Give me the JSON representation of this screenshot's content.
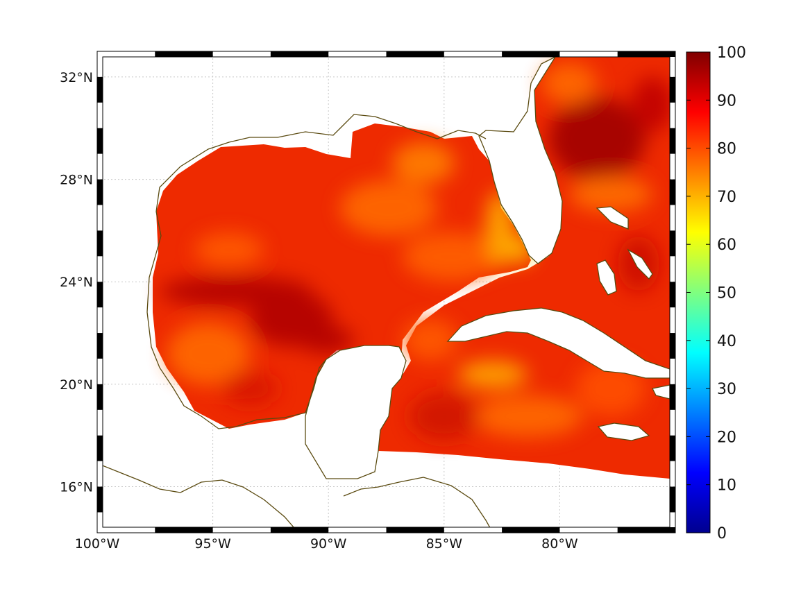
{
  "map": {
    "lon_range": [
      -100,
      -75
    ],
    "lat_range": [
      14.2,
      33
    ],
    "x_ticks": [
      {
        "lon": -100,
        "label": "100°W"
      },
      {
        "lon": -95,
        "label": "95°W"
      },
      {
        "lon": -90,
        "label": "90°W"
      },
      {
        "lon": -85,
        "label": "85°W"
      },
      {
        "lon": -80,
        "label": "80°W"
      }
    ],
    "y_ticks": [
      {
        "lat": 16,
        "label": "16°N"
      },
      {
        "lat": 20,
        "label": "20°N"
      },
      {
        "lat": 24,
        "label": "24°N"
      },
      {
        "lat": 28,
        "label": "28°N"
      },
      {
        "lat": 32,
        "label": "32°N"
      }
    ],
    "grid": true,
    "coastline_color": "#5a4a10",
    "frame_style": "alternating black-white border"
  },
  "colorbar": {
    "min": 0,
    "max": 100,
    "colormap": "jet",
    "ticks": [
      "0",
      "10",
      "20",
      "30",
      "40",
      "50",
      "60",
      "70",
      "80",
      "90",
      "100"
    ]
  },
  "field": {
    "typical_range": [
      70,
      98
    ],
    "palette": {
      "high": "#b00000",
      "mid": "#e81800",
      "low": "#ff7a00",
      "min_seen": "#ffc000"
    }
  }
}
